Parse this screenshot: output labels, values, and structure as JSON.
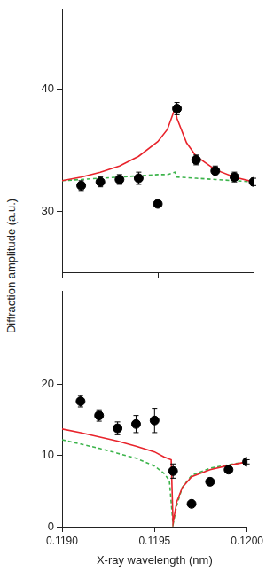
{
  "chart_data": [
    {
      "type": "scatter",
      "y_label": "Diffraction amplitude (a.u.)",
      "xlim": [
        0.119,
        0.12
      ],
      "xticks": [
        {
          "value": 0.119,
          "label": "0.1190"
        },
        {
          "value": 0.1195,
          "label": "0.1195"
        },
        {
          "value": 0.12,
          "label": "0.1200"
        }
      ],
      "ylim": [
        25,
        46.5
      ],
      "yticks": [
        30,
        40
      ],
      "grid": false,
      "tick_labels": "y",
      "series": [
        {
          "type": "line",
          "color": "#e8242c",
          "line_style": "solid",
          "x": [
            0.119,
            0.1191,
            0.1192,
            0.1193,
            0.1194,
            0.1195,
            0.11955,
            0.11958,
            0.11959,
            0.1196,
            0.11965,
            0.1197,
            0.1198,
            0.1199,
            0.12
          ],
          "values": [
            32.5,
            32.8,
            33.2,
            33.7,
            34.5,
            35.7,
            36.7,
            38.0,
            38.5,
            37.6,
            35.6,
            34.5,
            33.4,
            32.8,
            32.4
          ]
        },
        {
          "type": "line",
          "color": "#3cb44b",
          "line_style": "dashed",
          "x": [
            0.119,
            0.1191,
            0.1192,
            0.1193,
            0.1194,
            0.1195,
            0.11955,
            0.11959,
            0.1196,
            0.1197,
            0.1198,
            0.1199,
            0.12
          ],
          "values": [
            32.5,
            32.6,
            32.7,
            32.8,
            32.9,
            33.0,
            33.0,
            33.2,
            32.8,
            32.7,
            32.6,
            32.5,
            32.4
          ]
        },
        {
          "type": "scatter",
          "color": "#000000",
          "marker": "circle",
          "x": [
            0.1191,
            0.1192,
            0.1193,
            0.1194,
            0.1195,
            0.1196,
            0.1197,
            0.1198,
            0.1199,
            0.12
          ],
          "values": [
            32.1,
            32.4,
            32.6,
            32.7,
            30.6,
            38.4,
            34.2,
            33.3,
            32.8,
            32.4
          ],
          "errors": [
            0.4,
            0.4,
            0.4,
            0.5,
            0.2,
            0.5,
            0.4,
            0.4,
            0.4,
            0.3
          ]
        }
      ]
    },
    {
      "type": "scatter",
      "x_label": "X-ray wavelength (nm)",
      "xlim": [
        0.119,
        0.12
      ],
      "xticks": [
        {
          "value": 0.119,
          "label": "0.1190"
        },
        {
          "value": 0.1195,
          "label": "0.1195"
        },
        {
          "value": 0.12,
          "label": "0.1200"
        }
      ],
      "ylim": [
        0,
        33
      ],
      "yticks": [
        0,
        10,
        20
      ],
      "grid": false,
      "series": [
        {
          "type": "line",
          "color": "#e8242c",
          "line_style": "solid",
          "x": [
            0.119,
            0.1191,
            0.1192,
            0.1193,
            0.1194,
            0.1195,
            0.11955,
            0.11959,
            0.1196,
            0.11962,
            0.11965,
            0.1197,
            0.1198,
            0.1199,
            0.12
          ],
          "values": [
            13.7,
            13.2,
            12.6,
            12.0,
            11.3,
            10.5,
            9.8,
            9.4,
            0.5,
            3.5,
            5.5,
            7.0,
            8.0,
            8.6,
            9.1
          ]
        },
        {
          "type": "line",
          "color": "#3cb44b",
          "line_style": "dashed",
          "x": [
            0.119,
            0.1191,
            0.1192,
            0.1193,
            0.1194,
            0.1195,
            0.11955,
            0.11958,
            0.1196,
            0.11962,
            0.11965,
            0.1197,
            0.1198,
            0.1199,
            0.12
          ],
          "values": [
            12.2,
            11.6,
            11.0,
            10.3,
            9.6,
            8.5,
            7.5,
            6.5,
            0.3,
            3.0,
            5.5,
            7.2,
            8.2,
            8.7,
            9.1
          ]
        },
        {
          "type": "scatter",
          "color": "#000000",
          "marker": "circle",
          "x": [
            0.1191,
            0.1192,
            0.1193,
            0.1194,
            0.1195,
            0.1196,
            0.1197,
            0.1198,
            0.1199,
            0.12
          ],
          "values": [
            17.6,
            15.6,
            13.8,
            14.4,
            14.9,
            7.8,
            3.2,
            6.3,
            8.0,
            9.1
          ],
          "errors": [
            0.8,
            0.8,
            0.9,
            1.2,
            1.7,
            1.0,
            0.3,
            0.3,
            0.3,
            0.3
          ]
        }
      ]
    }
  ]
}
